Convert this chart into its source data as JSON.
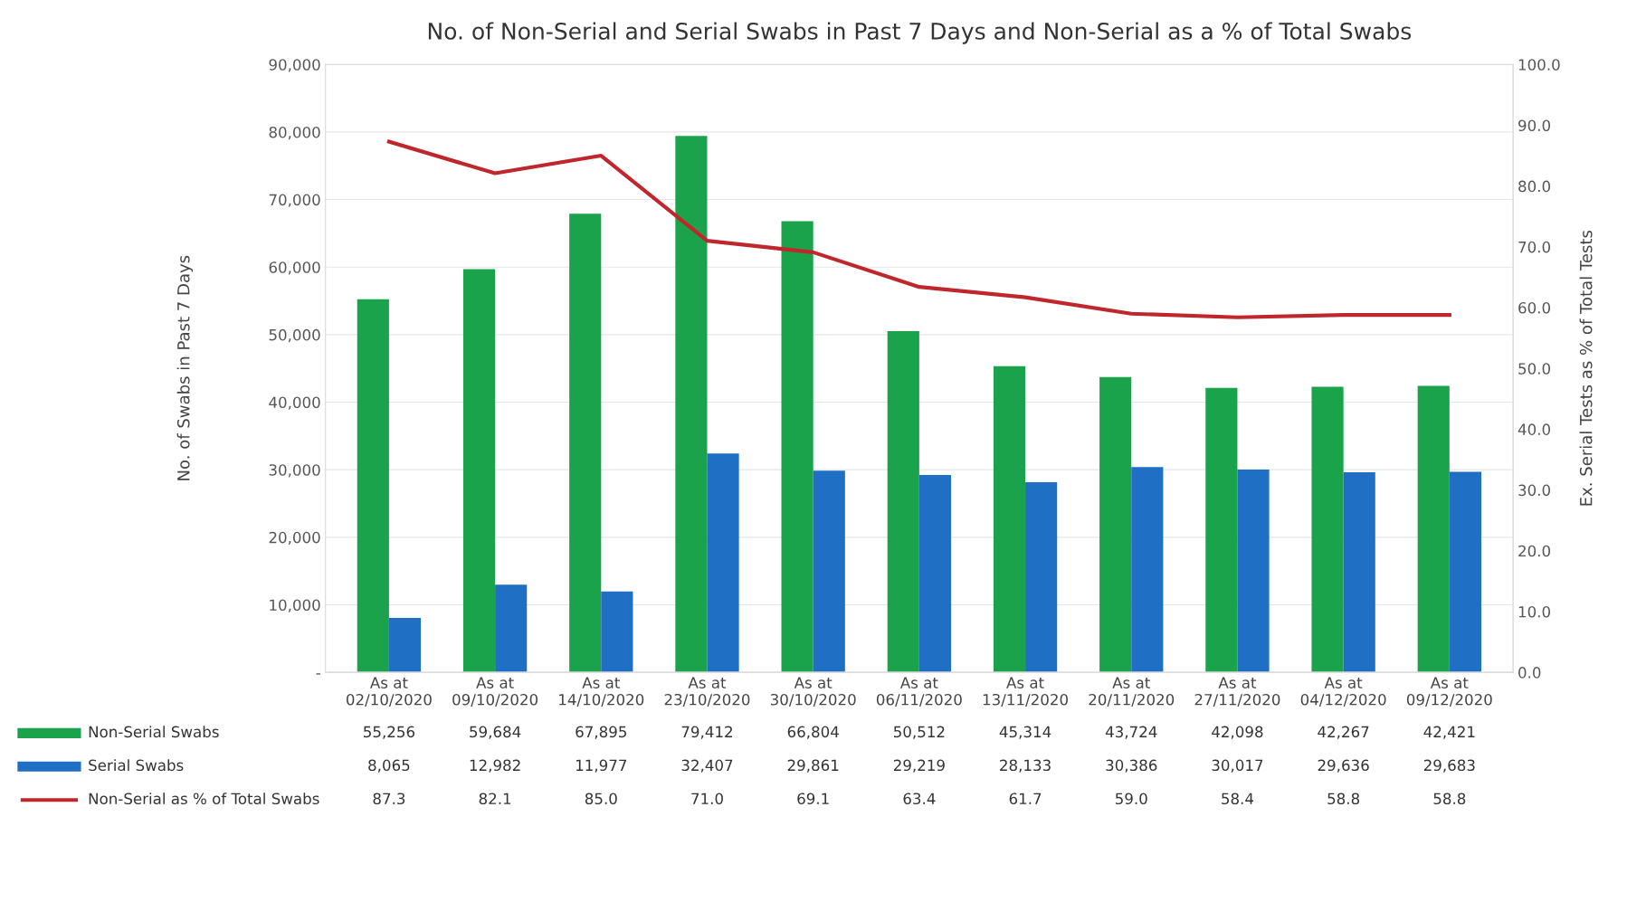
{
  "chart_data": {
    "type": "bar",
    "title": "No. of Non-Serial and Serial Swabs in Past 7 Days and Non-Serial as a % of Total Swabs",
    "ylabel": "No. of Swabs in Past 7 Days",
    "y2label": "Ex. Serial Tests as % of Total Tests",
    "categories": [
      "As at\n02/10/2020",
      "As at\n09/10/2020",
      "As at\n14/10/2020",
      "As at\n23/10/2020",
      "As at\n30/10/2020",
      "As at\n06/11/2020",
      "As at\n13/11/2020",
      "As at\n20/11/2020",
      "As at\n27/11/2020",
      "As at\n04/12/2020",
      "As at\n09/12/2020"
    ],
    "series": [
      {
        "name": "Non-Serial Swabs",
        "color": "#1aa34a",
        "values": [
          55256,
          59684,
          67895,
          79412,
          66804,
          50512,
          45314,
          43724,
          42098,
          42267,
          42421
        ],
        "value_labels": [
          "55,256",
          "59,684",
          "67,895",
          "79,412",
          "66,804",
          "50,512",
          "45,314",
          "43,724",
          "42,098",
          "42,267",
          "42,421"
        ]
      },
      {
        "name": "Serial Swabs",
        "color": "#1f6fc4",
        "values": [
          8065,
          12982,
          11977,
          32407,
          29861,
          29219,
          28133,
          30386,
          30017,
          29636,
          29683
        ],
        "value_labels": [
          "8,065",
          "12,982",
          "11,977",
          "32,407",
          "29,861",
          "29,219",
          "28,133",
          "30,386",
          "30,017",
          "29,636",
          "29,683"
        ]
      },
      {
        "name": "Non-Serial as % of Total Swabs",
        "type": "line",
        "axis": "y2",
        "color": "#c0272d",
        "values": [
          87.3,
          82.1,
          85.0,
          71.0,
          69.1,
          63.4,
          61.7,
          59.0,
          58.4,
          58.8,
          58.8
        ],
        "value_labels": [
          "87.3",
          "82.1",
          "85.0",
          "71.0",
          "69.1",
          "63.4",
          "61.7",
          "59.0",
          "58.4",
          "58.8",
          "58.8"
        ]
      }
    ],
    "ylim": [
      0,
      90000
    ],
    "yticks": [
      {
        "value": 0,
        "label": "-"
      },
      {
        "value": 10000,
        "label": "10,000"
      },
      {
        "value": 20000,
        "label": "20,000"
      },
      {
        "value": 30000,
        "label": "30,000"
      },
      {
        "value": 40000,
        "label": "40,000"
      },
      {
        "value": 50000,
        "label": "50,000"
      },
      {
        "value": 60000,
        "label": "60,000"
      },
      {
        "value": 70000,
        "label": "70,000"
      },
      {
        "value": 80000,
        "label": "80,000"
      },
      {
        "value": 90000,
        "label": "90,000"
      }
    ],
    "y2lim": [
      0,
      100
    ],
    "y2ticks": [
      {
        "value": 0,
        "label": "0.0"
      },
      {
        "value": 10,
        "label": "10.0"
      },
      {
        "value": 20,
        "label": "20.0"
      },
      {
        "value": 30,
        "label": "30.0"
      },
      {
        "value": 40,
        "label": "40.0"
      },
      {
        "value": 50,
        "label": "50.0"
      },
      {
        "value": 60,
        "label": "60.0"
      },
      {
        "value": 70,
        "label": "70.0"
      },
      {
        "value": 80,
        "label": "80.0"
      },
      {
        "value": 90,
        "label": "90.0"
      },
      {
        "value": 100,
        "label": "100.0"
      }
    ],
    "grid": "y",
    "legend": "bottom left"
  }
}
